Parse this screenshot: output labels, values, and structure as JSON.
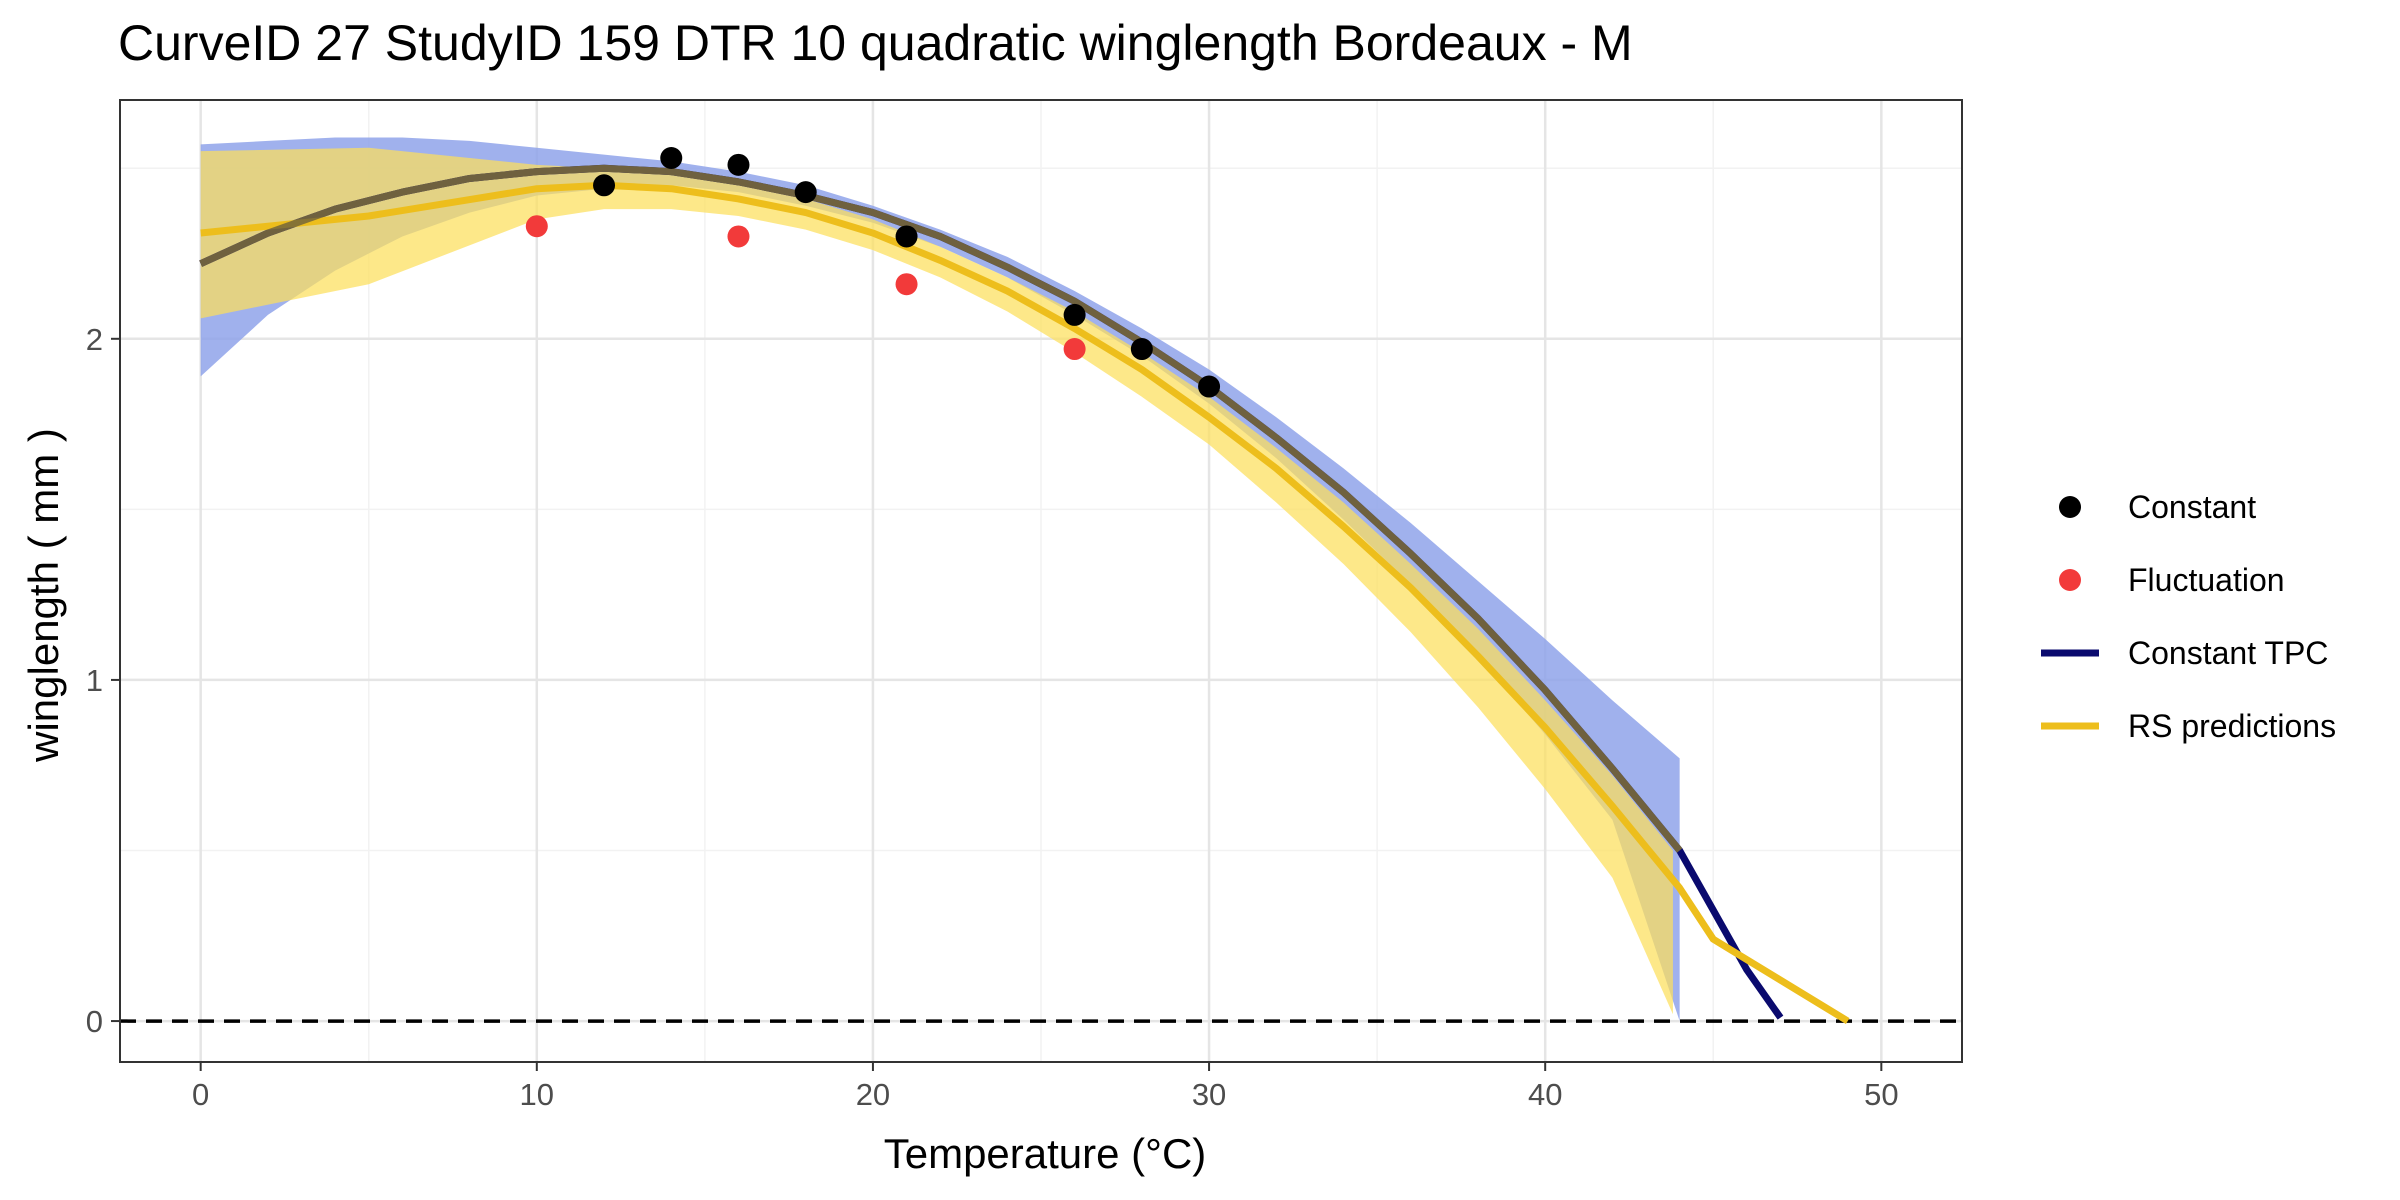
{
  "chart_data": {
    "type": "line",
    "title": "CurveID 27 StudyID 159 DTR 10 quadratic winglength Bordeaux - M",
    "xlabel": "Temperature (°C)",
    "ylabel": "winglength ( mm )",
    "xlim": [
      -2.4,
      52.4
    ],
    "ylim": [
      -0.12,
      2.7
    ],
    "x_ticks": [
      0,
      10,
      20,
      30,
      40,
      50
    ],
    "x_tick_labels": [
      "0",
      "10",
      "20",
      "30",
      "40",
      "50"
    ],
    "y_ticks": [
      0,
      1,
      2
    ],
    "y_tick_labels": [
      "0",
      "1",
      "2"
    ],
    "grid": true,
    "reference_line": {
      "y": 0,
      "style": "dashed"
    },
    "legend": {
      "position": "right",
      "entries": [
        "Constant",
        "Fluctuation",
        "Constant TPC",
        "RS predictions"
      ]
    },
    "colors": {
      "constant": "#000000",
      "fluctuation": "#F23A3A",
      "constant_tpc": "#0A0A6E",
      "rs_predictions": "#EDBE1C",
      "tpc_band": "#8FA3EA",
      "rs_band": "#FCDF5C",
      "overlap_line": "#7A6A3A"
    },
    "series": [
      {
        "name": "Constant",
        "kind": "points",
        "x": [
          12,
          14,
          16,
          18,
          21,
          26,
          28,
          30
        ],
        "y": [
          2.45,
          2.53,
          2.51,
          2.43,
          2.3,
          2.07,
          1.97,
          1.86
        ]
      },
      {
        "name": "Fluctuation",
        "kind": "points",
        "x": [
          10,
          16,
          21,
          26
        ],
        "y": [
          2.33,
          2.3,
          2.16,
          1.97
        ]
      },
      {
        "name": "Constant TPC",
        "kind": "line",
        "x": [
          0,
          2,
          4,
          6,
          8,
          10,
          12,
          14,
          16,
          18,
          20,
          22,
          24,
          26,
          28,
          30,
          32,
          34,
          36,
          38,
          40,
          42,
          44,
          46,
          47
        ],
        "y": [
          2.22,
          2.31,
          2.38,
          2.43,
          2.47,
          2.49,
          2.5,
          2.49,
          2.46,
          2.42,
          2.37,
          2.3,
          2.21,
          2.11,
          1.99,
          1.86,
          1.71,
          1.55,
          1.37,
          1.18,
          0.97,
          0.74,
          0.5,
          0.15,
          0.01
        ],
        "band_upper": [
          2.57,
          2.58,
          2.59,
          2.59,
          2.58,
          2.56,
          2.54,
          2.52,
          2.49,
          2.45,
          2.39,
          2.32,
          2.24,
          2.14,
          2.03,
          1.91,
          1.77,
          1.62,
          1.46,
          1.29,
          1.12,
          0.94,
          0.77
        ],
        "band_lower": [
          1.89,
          2.07,
          2.2,
          2.3,
          2.37,
          2.42,
          2.44,
          2.45,
          2.43,
          2.39,
          2.34,
          2.27,
          2.18,
          2.07,
          1.95,
          1.81,
          1.65,
          1.47,
          1.28,
          1.07,
          0.84,
          0.59,
          0.0
        ],
        "band_x": [
          0,
          2,
          4,
          6,
          8,
          10,
          12,
          14,
          16,
          18,
          20,
          22,
          24,
          26,
          28,
          30,
          32,
          34,
          36,
          38,
          40,
          42,
          44
        ]
      },
      {
        "name": "RS predictions",
        "kind": "line",
        "x": [
          0,
          5,
          10,
          12,
          14,
          16,
          18,
          20,
          22,
          24,
          26,
          28,
          30,
          32,
          34,
          36,
          38,
          40,
          42,
          44,
          45,
          47,
          49
        ],
        "y": [
          2.31,
          2.36,
          2.44,
          2.45,
          2.44,
          2.41,
          2.37,
          2.31,
          2.23,
          2.14,
          2.03,
          1.91,
          1.77,
          1.62,
          1.45,
          1.27,
          1.07,
          0.86,
          0.63,
          0.39,
          0.24,
          0.12,
          0.0
        ],
        "band_x": [
          0,
          5,
          10,
          12,
          14,
          16,
          18,
          20,
          22,
          24,
          26,
          28,
          30,
          32,
          34,
          36,
          38,
          40,
          42,
          43.8
        ],
        "band_upper": [
          2.55,
          2.56,
          2.51,
          2.5,
          2.48,
          2.45,
          2.41,
          2.35,
          2.27,
          2.18,
          2.08,
          1.96,
          1.83,
          1.68,
          1.52,
          1.34,
          1.15,
          0.94,
          0.72,
          0.5
        ],
        "band_lower": [
          2.06,
          2.16,
          2.35,
          2.38,
          2.38,
          2.36,
          2.32,
          2.26,
          2.18,
          2.08,
          1.96,
          1.83,
          1.69,
          1.52,
          1.34,
          1.14,
          0.92,
          0.68,
          0.42,
          0.02
        ]
      }
    ]
  }
}
